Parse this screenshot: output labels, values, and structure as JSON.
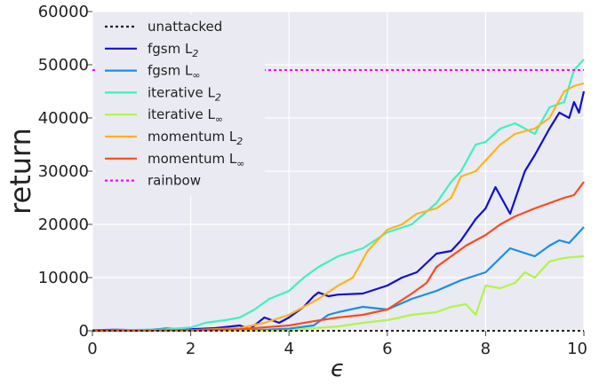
{
  "chart_data": {
    "type": "line",
    "title": "",
    "xlabel": "ϵ",
    "ylabel": "return",
    "xlim": [
      0,
      10
    ],
    "ylim": [
      0,
      60000
    ],
    "xticks": [
      "0",
      "2",
      "4",
      "6",
      "8",
      "10"
    ],
    "yticks": [
      "0",
      "10000",
      "20000",
      "30000",
      "40000",
      "50000",
      "60000"
    ],
    "grid": true,
    "legend_position": "top-left",
    "background": "#eaeaf2",
    "series": [
      {
        "name": "unattacked",
        "legend_base": "unattacked",
        "legend_sub": "",
        "color": "#222222",
        "dashed": true,
        "x": [
          0,
          10
        ],
        "y": [
          0,
          0
        ]
      },
      {
        "name": "fgsm L2",
        "legend_base": "fgsm L",
        "legend_sub": "2",
        "color": "#1010d0",
        "dashed": false,
        "x": [
          0,
          0.5,
          1,
          1.5,
          2,
          2.5,
          3,
          3.2,
          3.5,
          3.8,
          4,
          4.3,
          4.5,
          4.6,
          4.8,
          5,
          5.5,
          6,
          6.3,
          6.6,
          7,
          7.3,
          7.5,
          7.8,
          8,
          8.2,
          8.5,
          8.8,
          9,
          9.3,
          9.5,
          9.7,
          9.8,
          9.9,
          10
        ],
        "y": [
          100,
          200,
          100,
          400,
          300,
          500,
          1000,
          300,
          2500,
          1500,
          2500,
          4500,
          6500,
          7200,
          6500,
          6800,
          7000,
          8500,
          10000,
          11000,
          14500,
          15000,
          17000,
          21000,
          23000,
          27000,
          22000,
          30000,
          33000,
          38000,
          41000,
          40000,
          43000,
          41000,
          45000
        ]
      },
      {
        "name": "fgsm L∞",
        "legend_base": "fgsm L",
        "legend_sub": "∞",
        "color": "#1a8ee8",
        "dashed": false,
        "x": [
          0,
          1,
          2,
          3,
          3.5,
          4,
          4.5,
          4.8,
          5,
          5.5,
          6,
          6.5,
          7,
          7.5,
          8,
          8.5,
          9,
          9.3,
          9.5,
          9.7,
          10
        ],
        "y": [
          0,
          100,
          100,
          100,
          200,
          400,
          1000,
          3000,
          3500,
          4500,
          4000,
          6000,
          7500,
          9500,
          11000,
          15500,
          14000,
          16000,
          17000,
          16500,
          19500
        ]
      },
      {
        "name": "iterative L2",
        "legend_base": "iterative L",
        "legend_sub": "2",
        "color": "#40f0c0",
        "dashed": false,
        "x": [
          0,
          1,
          1.5,
          2,
          2.3,
          2.7,
          3,
          3.3,
          3.6,
          4,
          4.3,
          4.6,
          5,
          5.5,
          6,
          6.5,
          7,
          7.3,
          7.5,
          7.8,
          8,
          8.3,
          8.6,
          9,
          9.3,
          9.6,
          9.8,
          10
        ],
        "y": [
          0,
          200,
          300,
          600,
          1500,
          2000,
          2500,
          4000,
          6000,
          7500,
          10000,
          12000,
          14000,
          15500,
          18500,
          20000,
          24000,
          28000,
          30000,
          35000,
          35500,
          38000,
          39000,
          37000,
          42000,
          43000,
          49000,
          51000
        ]
      },
      {
        "name": "iterative L∞",
        "legend_base": "iterative L",
        "legend_sub": "∞",
        "color": "#b0f548",
        "dashed": false,
        "x": [
          0,
          2,
          3,
          4,
          4.5,
          5,
          5.5,
          6,
          6.5,
          7,
          7.3,
          7.6,
          7.8,
          8,
          8.3,
          8.6,
          8.8,
          9,
          9.3,
          9.5,
          9.7,
          10
        ],
        "y": [
          0,
          0,
          0,
          0,
          500,
          800,
          1500,
          2000,
          3000,
          3500,
          4500,
          5000,
          3000,
          8500,
          8000,
          9000,
          11000,
          10000,
          13000,
          13500,
          13800,
          14000
        ]
      },
      {
        "name": "momentum L2",
        "legend_base": "momentum L",
        "legend_sub": "2",
        "color": "#ffb31a",
        "dashed": false,
        "x": [
          0,
          2,
          3,
          3.5,
          4,
          4.3,
          4.6,
          5,
          5.3,
          5.6,
          6,
          6.3,
          6.6,
          7,
          7.3,
          7.5,
          7.8,
          8,
          8.3,
          8.6,
          9,
          9.3,
          9.6,
          9.8,
          10
        ],
        "y": [
          0,
          100,
          500,
          1500,
          3000,
          4500,
          6000,
          8500,
          10000,
          15000,
          19000,
          20000,
          22000,
          23000,
          25000,
          29000,
          30000,
          32000,
          35000,
          37000,
          38000,
          40000,
          45000,
          46000,
          46500
        ]
      },
      {
        "name": "momentum L∞",
        "legend_base": "momentum L",
        "legend_sub": "∞",
        "color": "#ff4a1a",
        "dashed": false,
        "x": [
          0,
          2,
          3,
          4,
          4.5,
          5,
          5.5,
          6,
          6.5,
          6.8,
          7,
          7.3,
          7.6,
          8,
          8.3,
          8.6,
          9,
          9.3,
          9.6,
          9.8,
          10
        ],
        "y": [
          0,
          100,
          300,
          1000,
          1800,
          2500,
          3000,
          4000,
          7000,
          9000,
          12000,
          14000,
          16000,
          18000,
          20000,
          21500,
          23000,
          24000,
          25000,
          25500,
          28000
        ]
      },
      {
        "name": "rainbow",
        "legend_base": "rainbow",
        "legend_sub": "",
        "color": "#ff00ff",
        "dashed": true,
        "x": [
          0,
          10
        ],
        "y": [
          49000,
          49000
        ]
      }
    ]
  }
}
